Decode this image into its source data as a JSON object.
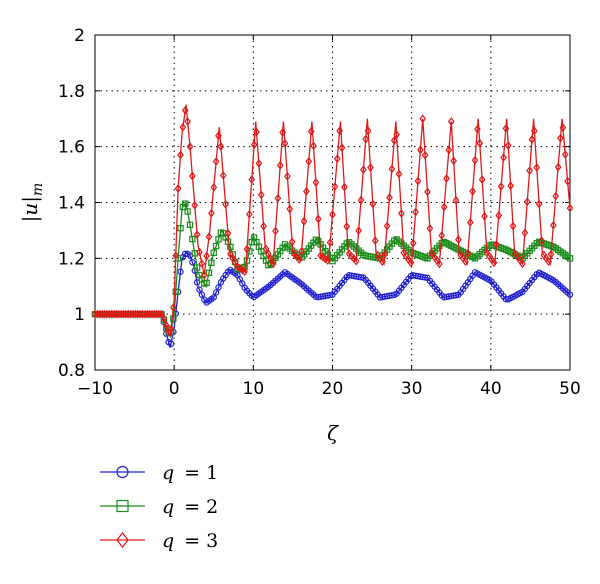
{
  "chart_data": {
    "type": "line",
    "title": "",
    "xlabel": "ζ",
    "ylabel_main": "|u|",
    "ylabel_sub": "m",
    "xlim": [
      -10,
      50
    ],
    "ylim": [
      0.8,
      2
    ],
    "xticks": [
      -10,
      0,
      10,
      20,
      30,
      40,
      50
    ],
    "xtick_labels": [
      "−10",
      "0",
      "10",
      "20",
      "30",
      "40",
      "50"
    ],
    "yticks": [
      0.8,
      1,
      1.2,
      1.4,
      1.6,
      1.8,
      2
    ],
    "ytick_labels": [
      "0.8",
      "1",
      "1.2",
      "1.4",
      "1.6",
      "1.8",
      "2"
    ],
    "grid": "dotted",
    "legend_position": "below",
    "series": [
      {
        "name": "q = 1",
        "legend_var": "q",
        "legend_value": "= 1",
        "color": "#1f1fd0",
        "marker": "circle",
        "x": [
          -10,
          -1.5,
          -1,
          -0.5,
          0,
          0.5,
          1,
          1.5,
          2,
          2.5,
          3,
          4,
          5,
          6,
          7,
          8,
          9,
          10,
          12,
          14,
          16,
          18,
          20,
          22,
          24,
          26,
          28,
          30,
          32,
          34,
          36,
          38,
          40,
          42,
          44,
          46,
          48,
          50
        ],
        "y": [
          1.0,
          1.0,
          0.93,
          0.88,
          0.95,
          1.08,
          1.2,
          1.22,
          1.21,
          1.17,
          1.1,
          1.04,
          1.06,
          1.12,
          1.16,
          1.14,
          1.09,
          1.06,
          1.1,
          1.15,
          1.11,
          1.06,
          1.07,
          1.14,
          1.13,
          1.06,
          1.07,
          1.14,
          1.13,
          1.06,
          1.07,
          1.15,
          1.12,
          1.05,
          1.08,
          1.15,
          1.12,
          1.07
        ]
      },
      {
        "name": "q = 2",
        "legend_var": "q",
        "legend_value": "= 2",
        "color": "#1a8a1a",
        "marker": "square",
        "x": [
          -10,
          -1.5,
          -1,
          -0.5,
          0,
          0.5,
          1,
          1.5,
          2,
          3,
          4,
          5,
          6,
          7,
          8,
          9,
          10,
          12,
          14,
          16,
          18,
          20,
          22,
          24,
          26,
          28,
          30,
          32,
          34,
          36,
          38,
          40,
          42,
          44,
          46,
          48,
          50
        ],
        "y": [
          1.0,
          1.0,
          0.95,
          0.92,
          1.0,
          1.2,
          1.38,
          1.4,
          1.32,
          1.15,
          1.1,
          1.22,
          1.3,
          1.25,
          1.16,
          1.17,
          1.28,
          1.17,
          1.25,
          1.2,
          1.27,
          1.19,
          1.26,
          1.21,
          1.2,
          1.27,
          1.22,
          1.2,
          1.26,
          1.23,
          1.2,
          1.25,
          1.23,
          1.2,
          1.26,
          1.24,
          1.2
        ]
      },
      {
        "name": "q = 3",
        "legend_var": "q",
        "legend_value": "= 3",
        "color": "#e01818",
        "marker": "diamond",
        "x": [
          -10,
          -1.5,
          -1,
          -0.5,
          0,
          0.5,
          1,
          1.5,
          2,
          3,
          3.8,
          4.5,
          5.7,
          7,
          8,
          9,
          10.3,
          11.5,
          12.5,
          13.8,
          15,
          16,
          17.4,
          18.5,
          19.5,
          21,
          22,
          23,
          24.4,
          25.5,
          26.5,
          28,
          29,
          30,
          31.4,
          32.5,
          33.5,
          35,
          36,
          37,
          38.4,
          39.5,
          40.5,
          42,
          43,
          44,
          45.4,
          46.5,
          47.5,
          49,
          50
        ],
        "y": [
          1.0,
          1.0,
          0.96,
          0.92,
          1.05,
          1.45,
          1.65,
          1.75,
          1.6,
          1.25,
          1.14,
          1.3,
          1.67,
          1.22,
          1.17,
          1.15,
          1.69,
          1.24,
          1.18,
          1.69,
          1.22,
          1.19,
          1.69,
          1.21,
          1.19,
          1.69,
          1.22,
          1.19,
          1.7,
          1.22,
          1.18,
          1.69,
          1.22,
          1.18,
          1.7,
          1.22,
          1.18,
          1.69,
          1.22,
          1.18,
          1.7,
          1.22,
          1.18,
          1.7,
          1.22,
          1.18,
          1.7,
          1.22,
          1.18,
          1.7,
          1.38
        ]
      }
    ]
  }
}
